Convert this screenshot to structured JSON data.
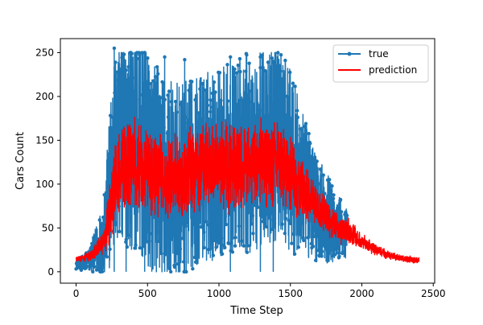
{
  "chart_data": {
    "type": "line",
    "title": "",
    "xlabel": "Time Step",
    "ylabel": "Cars Count",
    "xlim": [
      -110,
      2510
    ],
    "ylim": [
      -13,
      266
    ],
    "x_ticks": [
      0,
      500,
      1000,
      1500,
      2000,
      2500
    ],
    "y_ticks": [
      0,
      50,
      100,
      150,
      200,
      250
    ],
    "grid": false,
    "legend_position": "top-right",
    "series": [
      {
        "name": "true",
        "color": "#1f77b4",
        "marker": "circle",
        "x_range": [
          0,
          1900
        ],
        "points": [
          [
            0,
            8
          ],
          [
            100,
            14
          ],
          [
            200,
            40
          ],
          [
            250,
            120
          ],
          [
            300,
            155
          ],
          [
            400,
            150
          ],
          [
            500,
            125
          ],
          [
            600,
            110
          ],
          [
            700,
            95
          ],
          [
            800,
            110
          ],
          [
            900,
            120
          ],
          [
            1000,
            125
          ],
          [
            1100,
            130
          ],
          [
            1200,
            135
          ],
          [
            1300,
            140
          ],
          [
            1400,
            150
          ],
          [
            1500,
            125
          ],
          [
            1600,
            95
          ],
          [
            1700,
            70
          ],
          [
            1800,
            55
          ],
          [
            1900,
            40
          ]
        ],
        "spread": [
          [
            0,
            5
          ],
          [
            100,
            15
          ],
          [
            200,
            50
          ],
          [
            250,
            110
          ],
          [
            300,
            125
          ],
          [
            400,
            125
          ],
          [
            500,
            125
          ],
          [
            600,
            120
          ],
          [
            700,
            120
          ],
          [
            800,
            110
          ],
          [
            900,
            110
          ],
          [
            1000,
            110
          ],
          [
            1100,
            110
          ],
          [
            1200,
            115
          ],
          [
            1300,
            115
          ],
          [
            1400,
            115
          ],
          [
            1500,
            105
          ],
          [
            1600,
            80
          ],
          [
            1700,
            60
          ],
          [
            1800,
            45
          ],
          [
            1900,
            30
          ]
        ],
        "peaks": [
          [
            267,
            255
          ],
          [
            350,
            230
          ],
          [
            480,
            250
          ],
          [
            620,
            245
          ],
          [
            760,
            242
          ],
          [
            1080,
            245
          ],
          [
            1290,
            245
          ],
          [
            1380,
            240
          ]
        ]
      },
      {
        "name": "prediction",
        "color": "#ff0000",
        "x_range": [
          0,
          2400
        ],
        "points": [
          [
            0,
            14
          ],
          [
            100,
            18
          ],
          [
            200,
            35
          ],
          [
            250,
            80
          ],
          [
            300,
            120
          ],
          [
            400,
            125
          ],
          [
            500,
            115
          ],
          [
            600,
            110
          ],
          [
            700,
            105
          ],
          [
            800,
            115
          ],
          [
            900,
            120
          ],
          [
            1000,
            122
          ],
          [
            1100,
            118
          ],
          [
            1200,
            122
          ],
          [
            1300,
            125
          ],
          [
            1400,
            128
          ],
          [
            1500,
            110
          ],
          [
            1600,
            90
          ],
          [
            1700,
            72
          ],
          [
            1800,
            55
          ],
          [
            1900,
            45
          ],
          [
            2000,
            35
          ],
          [
            2100,
            25
          ],
          [
            2200,
            18
          ],
          [
            2300,
            15
          ],
          [
            2400,
            13
          ]
        ],
        "spread": [
          [
            0,
            3
          ],
          [
            100,
            6
          ],
          [
            200,
            15
          ],
          [
            250,
            50
          ],
          [
            300,
            55
          ],
          [
            400,
            55
          ],
          [
            500,
            55
          ],
          [
            600,
            55
          ],
          [
            700,
            55
          ],
          [
            800,
            55
          ],
          [
            900,
            55
          ],
          [
            1000,
            55
          ],
          [
            1100,
            55
          ],
          [
            1200,
            55
          ],
          [
            1300,
            55
          ],
          [
            1400,
            55
          ],
          [
            1500,
            50
          ],
          [
            1600,
            35
          ],
          [
            1700,
            25
          ],
          [
            1800,
            20
          ],
          [
            1900,
            18
          ],
          [
            2000,
            10
          ],
          [
            2100,
            7
          ],
          [
            2200,
            5
          ],
          [
            2300,
            4
          ],
          [
            2400,
            4
          ]
        ]
      }
    ]
  }
}
